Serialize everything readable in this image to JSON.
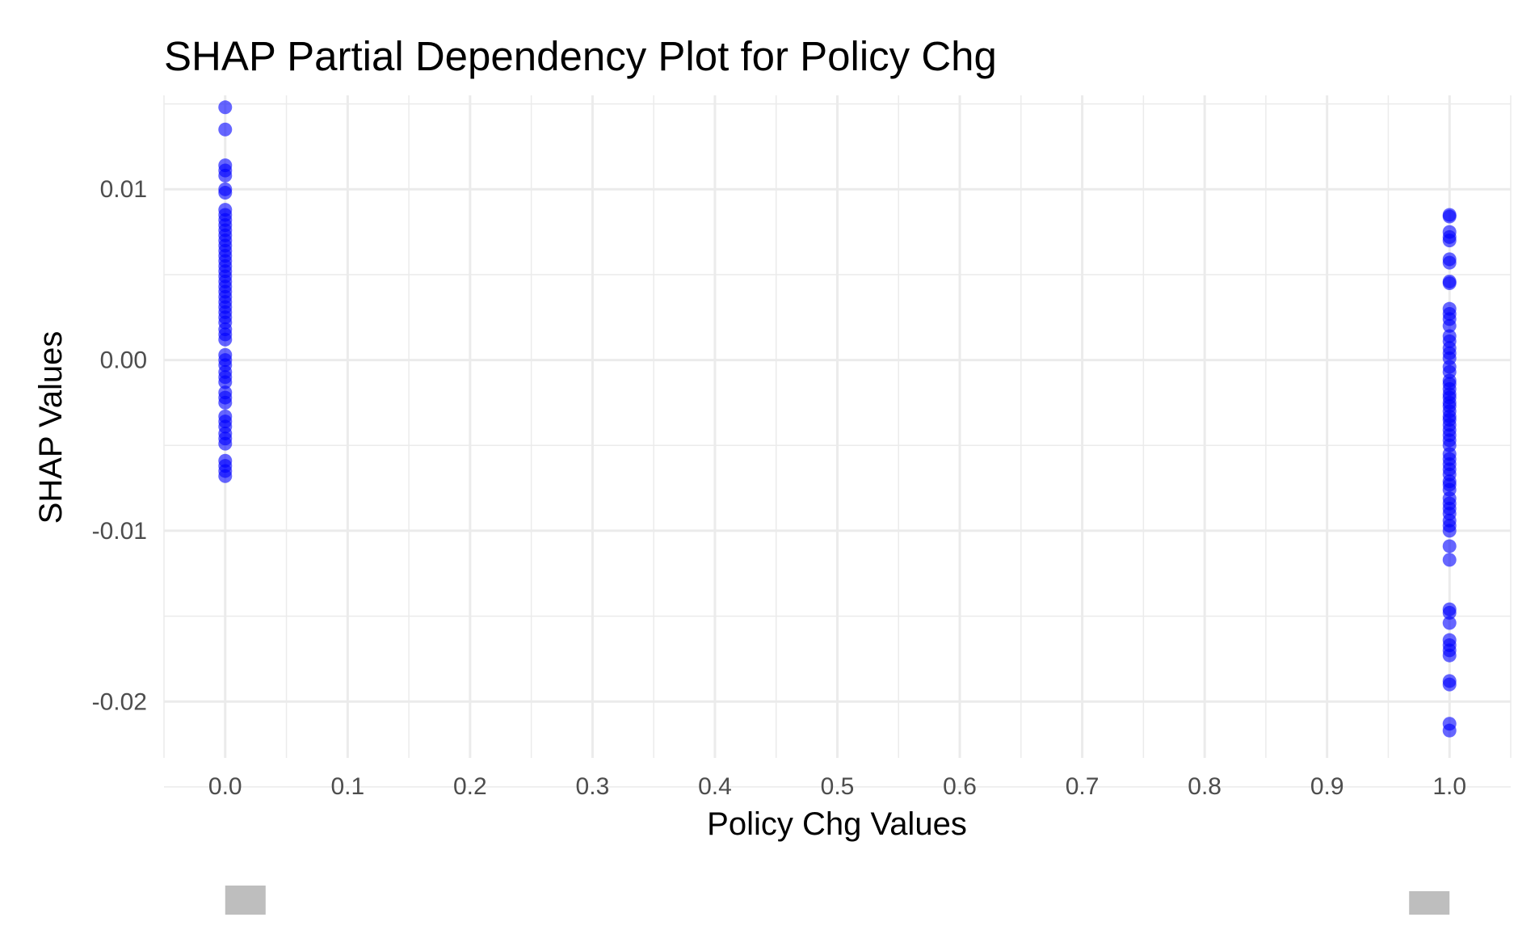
{
  "chart_data": {
    "type": "scatter",
    "title": "SHAP Partial Dependency Plot for Policy Chg",
    "xlabel": "Policy Chg Values",
    "ylabel": "SHAP Values",
    "xlim": [
      -0.05,
      1.05
    ],
    "ylim": [
      -0.0233,
      0.0155
    ],
    "x_ticks": [
      {
        "value": 0.0,
        "label": "0.0"
      },
      {
        "value": 0.1,
        "label": "0.1"
      },
      {
        "value": 0.2,
        "label": "0.2"
      },
      {
        "value": 0.3,
        "label": "0.3"
      },
      {
        "value": 0.4,
        "label": "0.4"
      },
      {
        "value": 0.5,
        "label": "0.5"
      },
      {
        "value": 0.6,
        "label": "0.6"
      },
      {
        "value": 0.7,
        "label": "0.7"
      },
      {
        "value": 0.8,
        "label": "0.8"
      },
      {
        "value": 0.9,
        "label": "0.9"
      },
      {
        "value": 1.0,
        "label": "1.0"
      }
    ],
    "y_ticks": [
      {
        "value": 0.01,
        "label": "0.01"
      },
      {
        "value": 0.0,
        "label": "0.00"
      },
      {
        "value": -0.01,
        "label": "-0.01"
      },
      {
        "value": -0.02,
        "label": "-0.02"
      }
    ],
    "grid": true,
    "point_color": "#0000ff",
    "series": [
      {
        "x": 0.0,
        "y": [
          0.0148,
          0.0135,
          0.0114,
          0.0111,
          0.0108,
          0.01,
          0.0098,
          0.0088,
          0.0085,
          0.0082,
          0.0079,
          0.0076,
          0.0073,
          0.007,
          0.0067,
          0.0064,
          0.0061,
          0.0058,
          0.0055,
          0.0052,
          0.0049,
          0.0046,
          0.0043,
          0.004,
          0.0037,
          0.0034,
          0.0031,
          0.0028,
          0.0025,
          0.0022,
          0.0018,
          0.0015,
          0.0012,
          0.0003,
          0.0,
          -0.0003,
          -0.0007,
          -0.001,
          -0.0013,
          -0.0019,
          -0.0022,
          -0.0025,
          -0.0033,
          -0.0036,
          -0.0039,
          -0.0043,
          -0.0046,
          -0.0049,
          -0.0059,
          -0.0062,
          -0.0065,
          -0.0068
        ]
      },
      {
        "x": 1.0,
        "y": [
          0.0085,
          0.0084,
          0.0075,
          0.0072,
          0.007,
          0.0059,
          0.0057,
          0.0046,
          0.0045,
          0.003,
          0.0027,
          0.0024,
          0.002,
          0.0014,
          0.0011,
          0.0007,
          0.0004,
          0.0001,
          -0.0004,
          -0.0007,
          -0.0012,
          -0.0014,
          -0.0017,
          -0.002,
          -0.0022,
          -0.0025,
          -0.0027,
          -0.003,
          -0.0033,
          -0.0035,
          -0.0038,
          -0.0041,
          -0.0044,
          -0.0047,
          -0.005,
          -0.0055,
          -0.0058,
          -0.0061,
          -0.0064,
          -0.0067,
          -0.0071,
          -0.0073,
          -0.0076,
          -0.0081,
          -0.0084,
          -0.0087,
          -0.009,
          -0.0094,
          -0.0097,
          -0.01,
          -0.0109,
          -0.0117,
          -0.0146,
          -0.0148,
          -0.0154,
          -0.0164,
          -0.0167,
          -0.017,
          -0.0173,
          -0.0188,
          -0.019,
          -0.0213,
          -0.0217
        ]
      }
    ],
    "rug_color": "#bebebe"
  }
}
